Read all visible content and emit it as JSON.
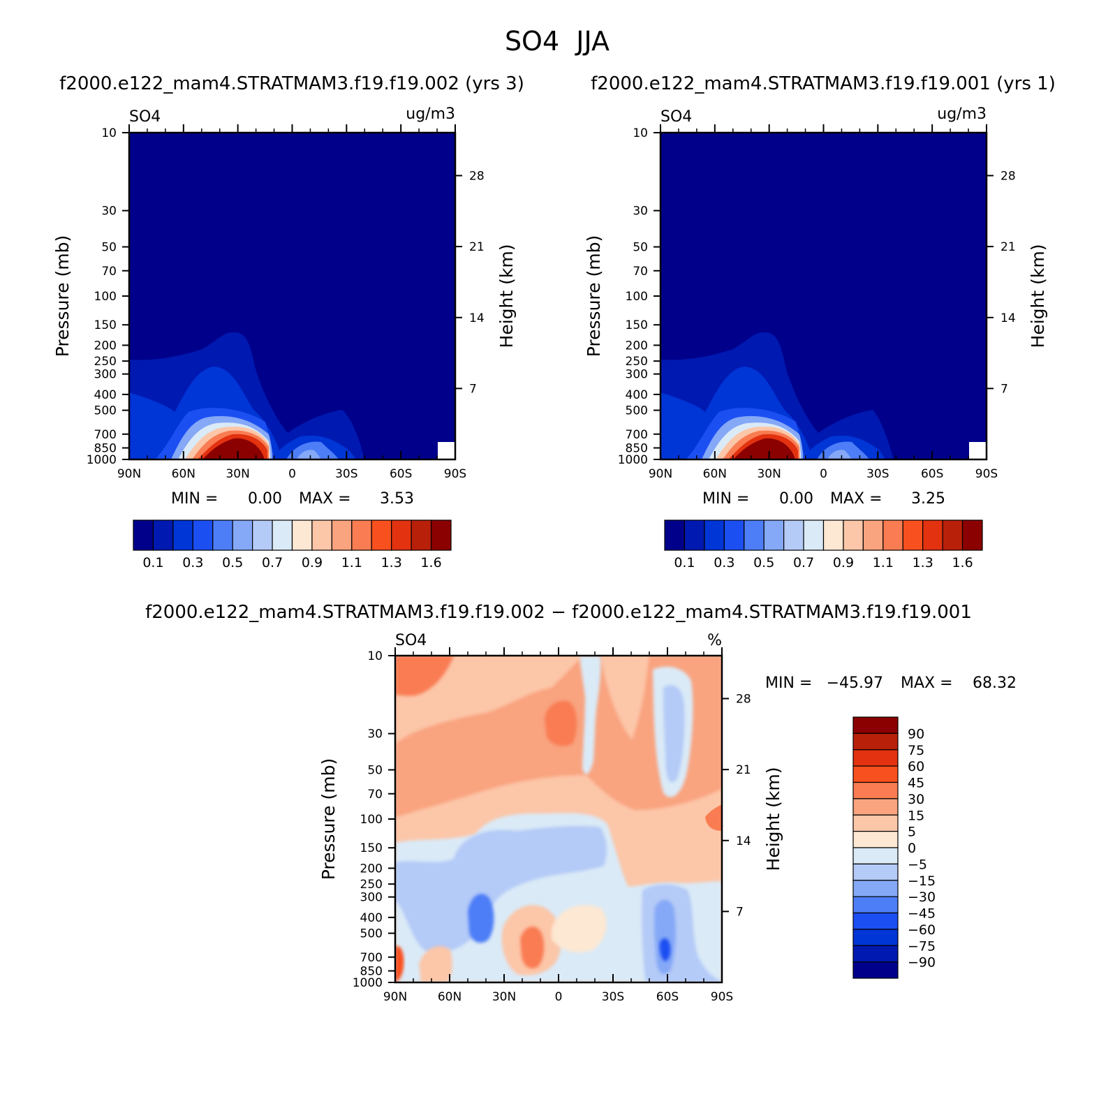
{
  "figure": {
    "title": "SO4  JJA",
    "top_left_header": "f2000.e122_mam4.STRATMAM3.f19.f19.002 (yrs 3)",
    "top_right_header": "f2000.e122_mam4.STRATMAM3.f19.f19.001 (yrs 1)",
    "bottom_header": "f2000.e122_mam4.STRATMAM3.f19.f19.002 − f2000.e122_mam4.STRATMAM3.f19.f19.001"
  },
  "chart_data": [
    {
      "type": "contour",
      "id": "panel1",
      "variable": "SO4",
      "units": "ug/m3",
      "ylabel": "Pressure (mb)",
      "y2label": "Height (km)",
      "x_ticklabels": [
        "90N",
        "60N",
        "30N",
        "0",
        "30S",
        "60S",
        "90S"
      ],
      "x_tickvalues": [
        90,
        60,
        30,
        0,
        -30,
        -60,
        -90
      ],
      "pressure_ticks": [
        10,
        30,
        50,
        70,
        100,
        150,
        200,
        250,
        300,
        400,
        500,
        700,
        850,
        1000
      ],
      "height_ticks": [
        7,
        14,
        21,
        28
      ],
      "min_label": "MIN =",
      "min_value": "0.00",
      "max_label": "MAX =",
      "max_value": "3.53",
      "colorbar_ticklabels": [
        "0.1",
        "0.3",
        "0.5",
        "0.7",
        "0.9",
        "1.1",
        "1.3",
        "1.6"
      ],
      "colors": [
        "#00008b",
        "#0019b0",
        "#0035d6",
        "#1c4ff2",
        "#4d7ef7",
        "#85a8f7",
        "#b4caf7",
        "#daeaf7",
        "#fde8d3",
        "#fcc6a8",
        "#f9a37f",
        "#f97c52",
        "#f9501f",
        "#e23210",
        "#b8200a",
        "#8b0000"
      ]
    },
    {
      "type": "contour",
      "id": "panel2",
      "variable": "SO4",
      "units": "ug/m3",
      "ylabel": "Pressure (mb)",
      "y2label": "Height (km)",
      "x_ticklabels": [
        "90N",
        "60N",
        "30N",
        "0",
        "30S",
        "60S",
        "90S"
      ],
      "x_tickvalues": [
        90,
        60,
        30,
        0,
        -30,
        -60,
        -90
      ],
      "pressure_ticks": [
        10,
        30,
        50,
        70,
        100,
        150,
        200,
        250,
        300,
        400,
        500,
        700,
        850,
        1000
      ],
      "height_ticks": [
        7,
        14,
        21,
        28
      ],
      "min_label": "MIN =",
      "min_value": "0.00",
      "max_label": "MAX =",
      "max_value": "3.25",
      "colorbar_ticklabels": [
        "0.1",
        "0.3",
        "0.5",
        "0.7",
        "0.9",
        "1.1",
        "1.3",
        "1.6"
      ],
      "colors": [
        "#00008b",
        "#0019b0",
        "#0035d6",
        "#1c4ff2",
        "#4d7ef7",
        "#85a8f7",
        "#b4caf7",
        "#daeaf7",
        "#fde8d3",
        "#fcc6a8",
        "#f9a37f",
        "#f97c52",
        "#f9501f",
        "#e23210",
        "#b8200a",
        "#8b0000"
      ]
    },
    {
      "type": "contour",
      "id": "panel3",
      "variable": "SO4",
      "units": "%",
      "ylabel": "Pressure (mb)",
      "y2label": "Height (km)",
      "x_ticklabels": [
        "90N",
        "60N",
        "30N",
        "0",
        "30S",
        "60S",
        "90S"
      ],
      "x_tickvalues": [
        90,
        60,
        30,
        0,
        -30,
        -60,
        -90
      ],
      "pressure_ticks": [
        10,
        30,
        50,
        70,
        100,
        150,
        200,
        250,
        300,
        400,
        500,
        700,
        850,
        1000
      ],
      "height_ticks": [
        7,
        14,
        21,
        28
      ],
      "min_label": "MIN =",
      "min_value": "−45.97",
      "max_label": "MAX =",
      "max_value": "68.32",
      "colorbar_ticklabels": [
        "90",
        "75",
        "60",
        "45",
        "30",
        "15",
        "5",
        "0",
        "−5",
        "−15",
        "−30",
        "−45",
        "−60",
        "−75",
        "−90"
      ],
      "colors": [
        "#8b0000",
        "#b8200a",
        "#e23210",
        "#f9501f",
        "#f97c52",
        "#f9a37f",
        "#fcc6a8",
        "#fde8d3",
        "#daeaf7",
        "#b4caf7",
        "#85a8f7",
        "#4d7ef7",
        "#1c4ff2",
        "#0035d6",
        "#0019b0",
        "#00008b"
      ]
    }
  ]
}
